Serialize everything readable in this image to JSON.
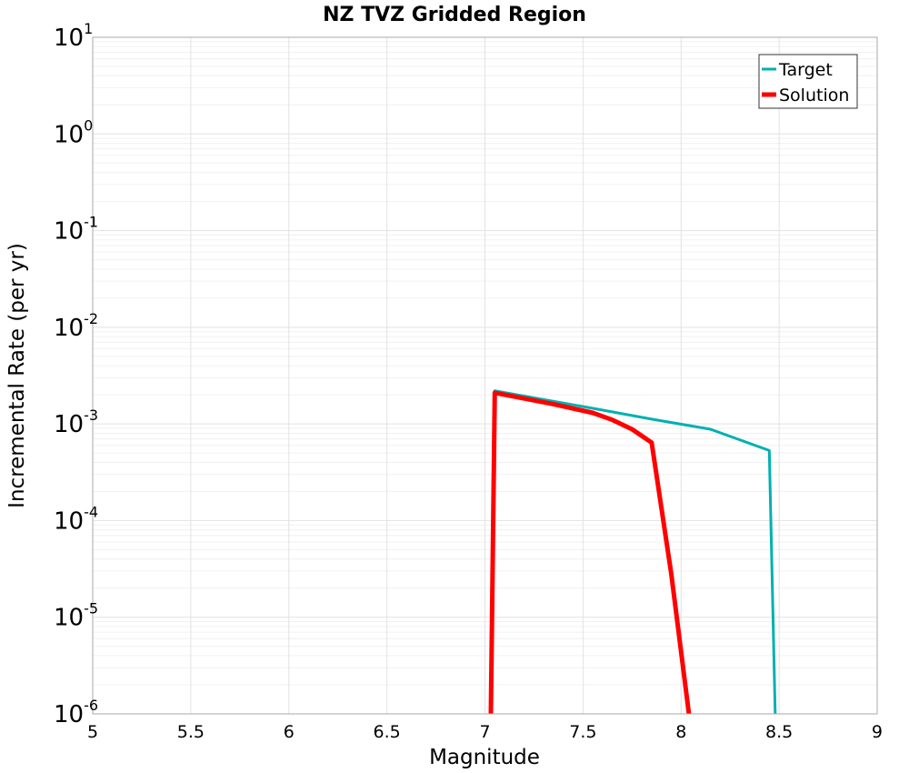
{
  "chart_data": {
    "type": "line",
    "title": "NZ TVZ Gridded Region",
    "xlabel": "Magnitude",
    "ylabel": "Incremental Rate (per yr)",
    "xlim": [
      5,
      9
    ],
    "ylim": [
      1e-06,
      10
    ],
    "yscale": "log",
    "x_ticks": [
      "5",
      "5.5",
      "6",
      "6.5",
      "7",
      "7.5",
      "8",
      "8.5",
      "9"
    ],
    "y_ticks": [
      {
        "base": "10",
        "exp": "-6"
      },
      {
        "base": "10",
        "exp": "-5"
      },
      {
        "base": "10",
        "exp": "-4"
      },
      {
        "base": "10",
        "exp": "-3"
      },
      {
        "base": "10",
        "exp": "-2"
      },
      {
        "base": "10",
        "exp": "-1"
      },
      {
        "base": "10",
        "exp": "0"
      },
      {
        "base": "10",
        "exp": "1"
      }
    ],
    "grid": true,
    "legend_position": "top-right",
    "series": [
      {
        "name": "Target",
        "color": "#00b0b0",
        "x": [
          7.03,
          7.05,
          7.55,
          7.85,
          8.15,
          8.45,
          8.48
        ],
        "y": [
          1e-06,
          0.0022,
          0.00145,
          0.00112,
          0.00088,
          0.00053,
          1e-06
        ]
      },
      {
        "name": "Solution",
        "color": "#ff0000",
        "x": [
          7.03,
          7.05,
          7.35,
          7.55,
          7.65,
          7.75,
          7.85,
          7.95,
          8.04
        ],
        "y": [
          1e-06,
          0.0021,
          0.0016,
          0.0013,
          0.0011,
          0.00088,
          0.00064,
          2.8e-05,
          1e-06
        ]
      }
    ]
  }
}
